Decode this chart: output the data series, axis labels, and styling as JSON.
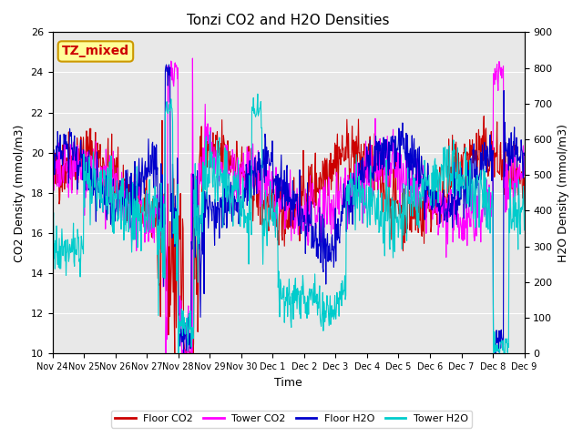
{
  "title": "Tonzi CO2 and H2O Densities",
  "xlabel": "Time",
  "ylabel_left": "CO2 Density (mmol/m3)",
  "ylabel_right": "H2O Density (mmol/m3)",
  "ylim_left": [
    10,
    26
  ],
  "ylim_right": [
    0,
    900
  ],
  "yticks_left": [
    10,
    12,
    14,
    16,
    18,
    20,
    22,
    24,
    26
  ],
  "yticks_right": [
    0,
    100,
    200,
    300,
    400,
    500,
    600,
    700,
    800,
    900
  ],
  "xtick_labels": [
    "Nov 24",
    "Nov 25",
    "Nov 26",
    "Nov 27",
    "Nov 28",
    "Nov 29",
    "Nov 30",
    "Dec 1",
    "Dec 2",
    "Dec 3",
    "Dec 4",
    "Dec 5",
    "Dec 6",
    "Dec 7",
    "Dec 8",
    "Dec 9"
  ],
  "annotation_text": "TZ_mixed",
  "annotation_color": "#cc0000",
  "annotation_bg": "#ffff99",
  "annotation_border": "#cc9900",
  "floor_co2_color": "#cc0000",
  "tower_co2_color": "#ff00ff",
  "floor_h2o_color": "#0000cc",
  "tower_h2o_color": "#00cccc",
  "background_color": "#e8e8e8",
  "legend_labels": [
    "Floor CO2",
    "Tower CO2",
    "Floor H2O",
    "Tower H2O"
  ],
  "n_points": 900,
  "seed": 42
}
